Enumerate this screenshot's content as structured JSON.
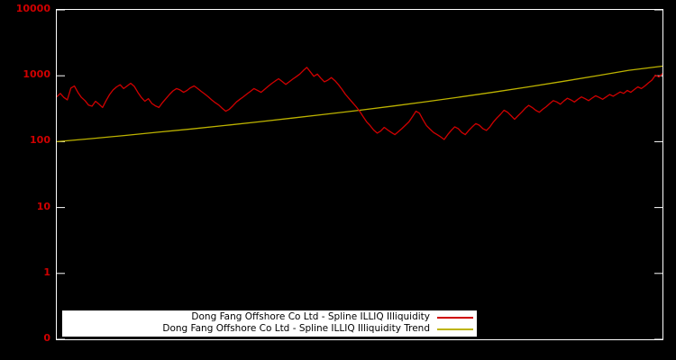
{
  "legend": {
    "entries": [
      {
        "label": "Dong Fang Offshore Co Ltd - Spline ILLIQ Illiquidity",
        "color": "#d00000"
      },
      {
        "label": "Dong Fang Offshore Co Ltd - Spline ILLIQ Illiquidity Trend",
        "color": "#bdb300"
      }
    ]
  },
  "chart_data": {
    "type": "line",
    "y_scale": "log",
    "y_ticks": [
      "10000",
      "1000",
      "100",
      "10",
      "1",
      "0"
    ],
    "ylim": [
      1,
      10000
    ],
    "x_tick_labels": [],
    "grid": false,
    "legend_position": "bottom-center",
    "background": "#000000",
    "border_color": "#ffffff",
    "tick_label_color": "#d00000",
    "series": [
      {
        "name": "Dong Fang Offshore Co Ltd - Spline ILLIQ Illiquidity",
        "color": "#d00000",
        "values": [
          480,
          540,
          470,
          430,
          650,
          700,
          560,
          470,
          420,
          360,
          345,
          410,
          370,
          330,
          420,
          520,
          610,
          680,
          730,
          640,
          700,
          770,
          690,
          560,
          470,
          410,
          450,
          380,
          350,
          330,
          390,
          450,
          520,
          590,
          640,
          610,
          560,
          600,
          660,
          700,
          640,
          580,
          530,
          480,
          430,
          390,
          360,
          320,
          290,
          310,
          350,
          400,
          440,
          480,
          530,
          580,
          640,
          600,
          560,
          620,
          690,
          760,
          830,
          900,
          820,
          740,
          810,
          890,
          970,
          1060,
          1200,
          1340,
          1150,
          980,
          1060,
          920,
          810,
          860,
          940,
          840,
          730,
          620,
          520,
          450,
          390,
          340,
          290,
          240,
          200,
          175,
          150,
          135,
          145,
          165,
          150,
          138,
          128,
          142,
          158,
          178,
          200,
          240,
          290,
          270,
          215,
          175,
          155,
          138,
          128,
          118,
          108,
          128,
          148,
          168,
          158,
          138,
          128,
          148,
          168,
          188,
          178,
          158,
          148,
          168,
          200,
          230,
          260,
          300,
          280,
          248,
          218,
          248,
          280,
          320,
          355,
          330,
          300,
          280,
          310,
          340,
          380,
          420,
          400,
          370,
          415,
          455,
          430,
          400,
          440,
          478,
          450,
          420,
          458,
          498,
          470,
          440,
          478,
          520,
          490,
          528,
          568,
          540,
          598,
          560,
          618,
          680,
          640,
          700,
          780,
          860,
          1020,
          960,
          1080
        ]
      },
      {
        "name": "Dong Fang Offshore Co Ltd - Spline ILLIQ Illiquidity Trend",
        "color": "#bdb300",
        "values": [
          100,
          111,
          124,
          139,
          156,
          176,
          200,
          228,
          261,
          300,
          348,
          406,
          478,
          566,
          676,
          815,
          990,
          1210,
          1400
        ]
      }
    ]
  }
}
